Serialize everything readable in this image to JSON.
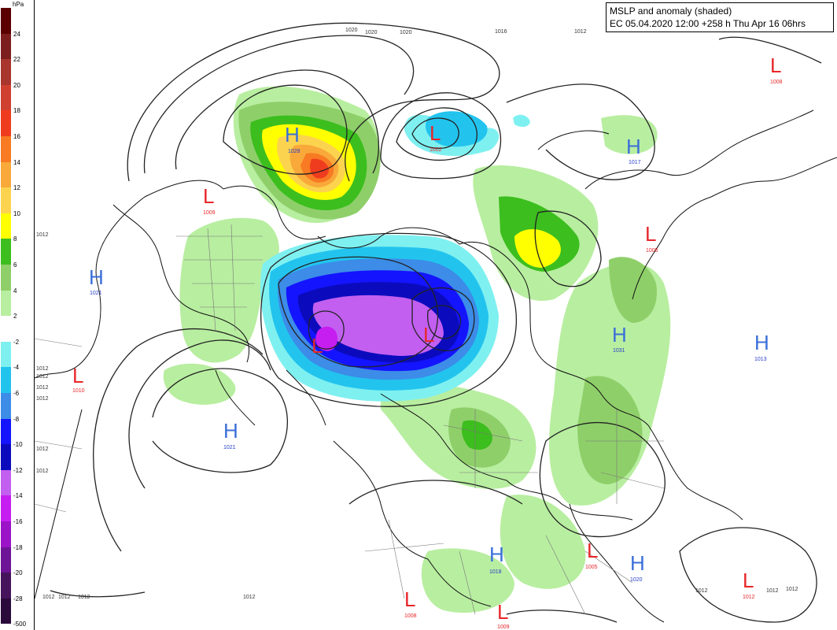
{
  "title": {
    "line1": "MSLP and anomaly (shaded)",
    "line2": "EC 05.04.2020 12:00 +258 h Thu Apr 16 06hrs"
  },
  "legend": {
    "unit": "hPa",
    "levels": [
      {
        "label": "24",
        "color": "#5a0000"
      },
      {
        "label": "22",
        "color": "#7d1e1e"
      },
      {
        "label": "20",
        "color": "#a8352e"
      },
      {
        "label": "18",
        "color": "#cf4030"
      },
      {
        "label": "16",
        "color": "#f03c1e"
      },
      {
        "label": "14",
        "color": "#f87a22"
      },
      {
        "label": "12",
        "color": "#f8a93a"
      },
      {
        "label": "10",
        "color": "#fcd34e"
      },
      {
        "label": "8",
        "color": "#ffff00"
      },
      {
        "label": "6",
        "color": "#3cbe1e"
      },
      {
        "label": "4",
        "color": "#8fcf6a"
      },
      {
        "label": "2",
        "color": "#b8eea0"
      },
      {
        "label": "-2",
        "color": "#ffffff"
      },
      {
        "label": "-4",
        "color": "#7ff0f0"
      },
      {
        "label": "-6",
        "color": "#22c4ee"
      },
      {
        "label": "-8",
        "color": "#3c8ce8"
      },
      {
        "label": "-10",
        "color": "#1414ff"
      },
      {
        "label": "-12",
        "color": "#0b0bbd"
      },
      {
        "label": "-14",
        "color": "#c25ff0"
      },
      {
        "label": "-16",
        "color": "#c61ef0"
      },
      {
        "label": "-18",
        "color": "#9b14c8"
      },
      {
        "label": "-20",
        "color": "#6e1496"
      },
      {
        "label": "-28",
        "color": "#46145a"
      },
      {
        "label": "-500",
        "color": "#2a0a3a"
      }
    ]
  },
  "centers": [
    {
      "type": "H",
      "value": "1028"
    },
    {
      "type": "L",
      "value": "1002"
    },
    {
      "type": "H",
      "value": "1017"
    },
    {
      "type": "L",
      "value": "1008"
    },
    {
      "type": "L",
      "value": "1009"
    },
    {
      "type": "H",
      "value": "1021"
    },
    {
      "type": "H",
      "value": "1021"
    },
    {
      "type": "L",
      "value": "1010"
    },
    {
      "type": "L",
      "value": "1005"
    },
    {
      "type": "H",
      "value": "1031"
    },
    {
      "type": "H",
      "value": "1013"
    },
    {
      "type": "H",
      "value": "1018"
    },
    {
      "type": "L",
      "value": "1005"
    },
    {
      "type": "H",
      "value": "1020"
    },
    {
      "type": "L",
      "value": "1008"
    },
    {
      "type": "L",
      "value": "1009"
    },
    {
      "type": "L",
      "value": "1012"
    }
  ],
  "contour_labels": [
    "1020",
    "1020",
    "1020",
    "1016",
    "1012",
    "1012",
    "1012",
    "1012",
    "1012",
    "1012",
    "1012",
    "1012",
    "1012",
    "1012",
    "1012",
    "1012",
    "1012",
    "1012",
    "1012"
  ]
}
